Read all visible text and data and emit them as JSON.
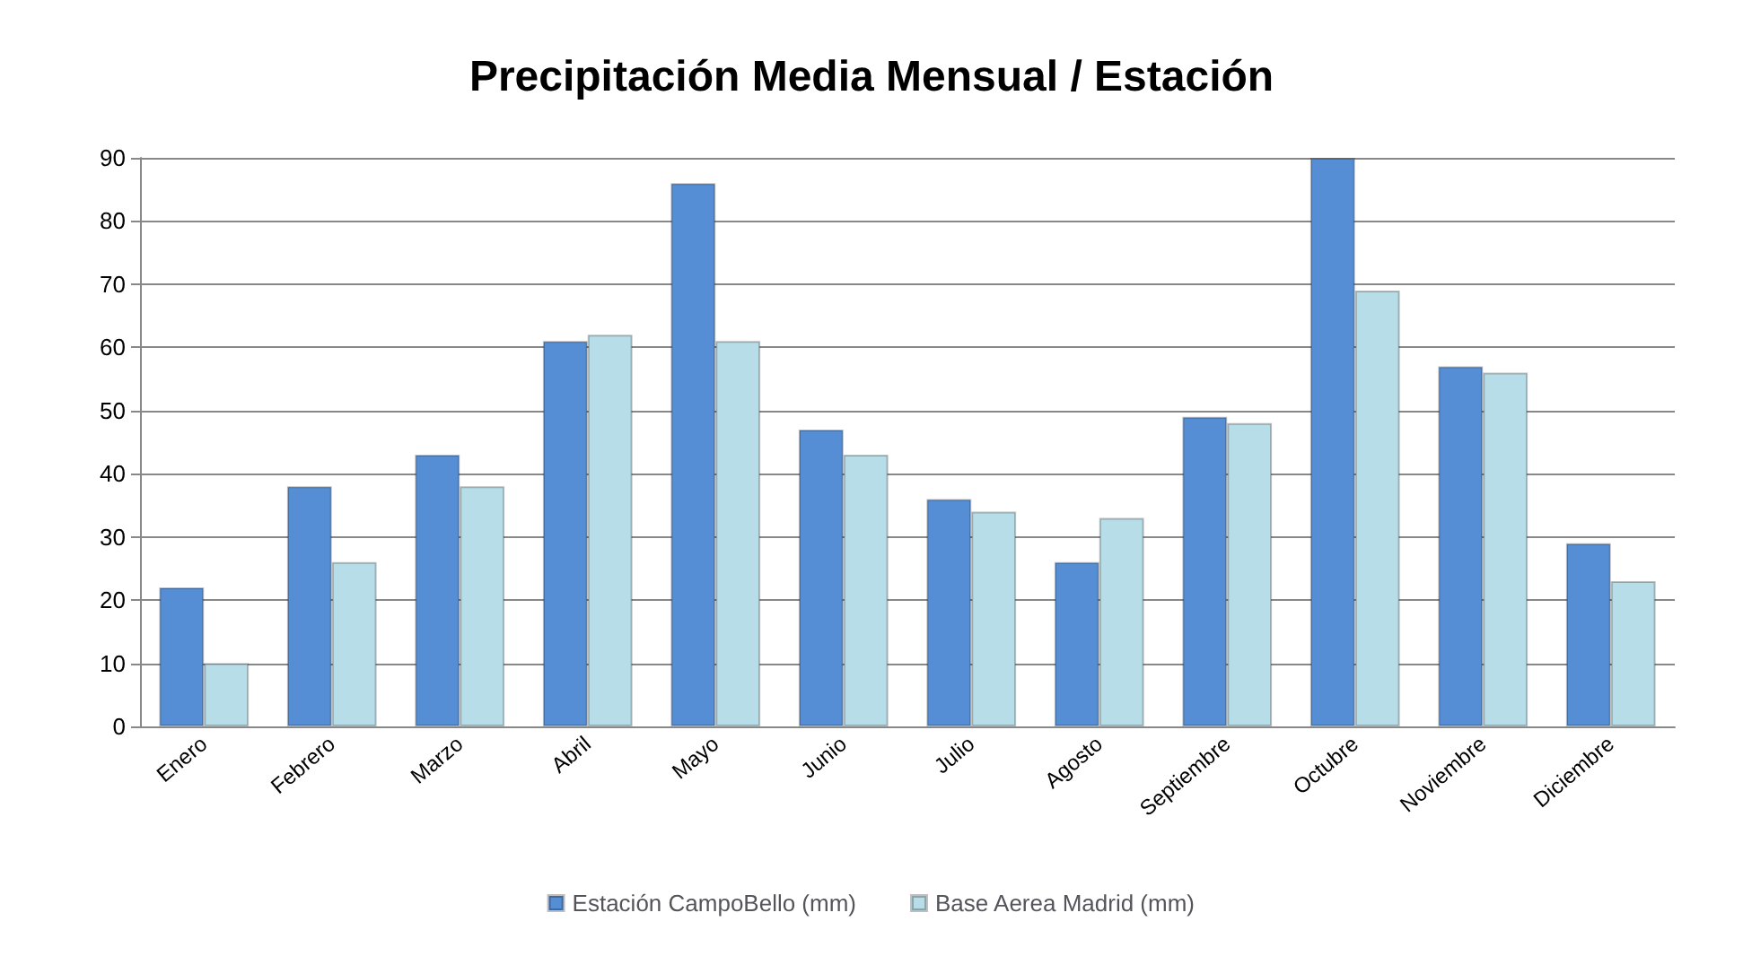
{
  "chart_data": {
    "type": "bar",
    "title": "Precipitación Media Mensual / Estación",
    "categories": [
      "Enero",
      "Febrero",
      "Marzo",
      "Abril",
      "Mayo",
      "Junio",
      "Julio",
      "Agosto",
      "Septiembre",
      "Octubre",
      "Noviembre",
      "Diciembre"
    ],
    "series": [
      {
        "name": "Estación CampoBello (mm)",
        "color": "#558ed5",
        "values": [
          22,
          38,
          43,
          61,
          86,
          47,
          36,
          26,
          49,
          90,
          57,
          29
        ]
      },
      {
        "name": "Base Aerea Madrid (mm)",
        "color": "#b7dee8",
        "values": [
          10,
          26,
          38,
          62,
          61,
          43,
          34,
          33,
          48,
          69,
          56,
          23
        ]
      }
    ],
    "ylim": [
      0,
      90
    ],
    "yticks": [
      0,
      10,
      20,
      30,
      40,
      50,
      60,
      70,
      80,
      90
    ],
    "grid": "y",
    "legend": "bottom"
  }
}
